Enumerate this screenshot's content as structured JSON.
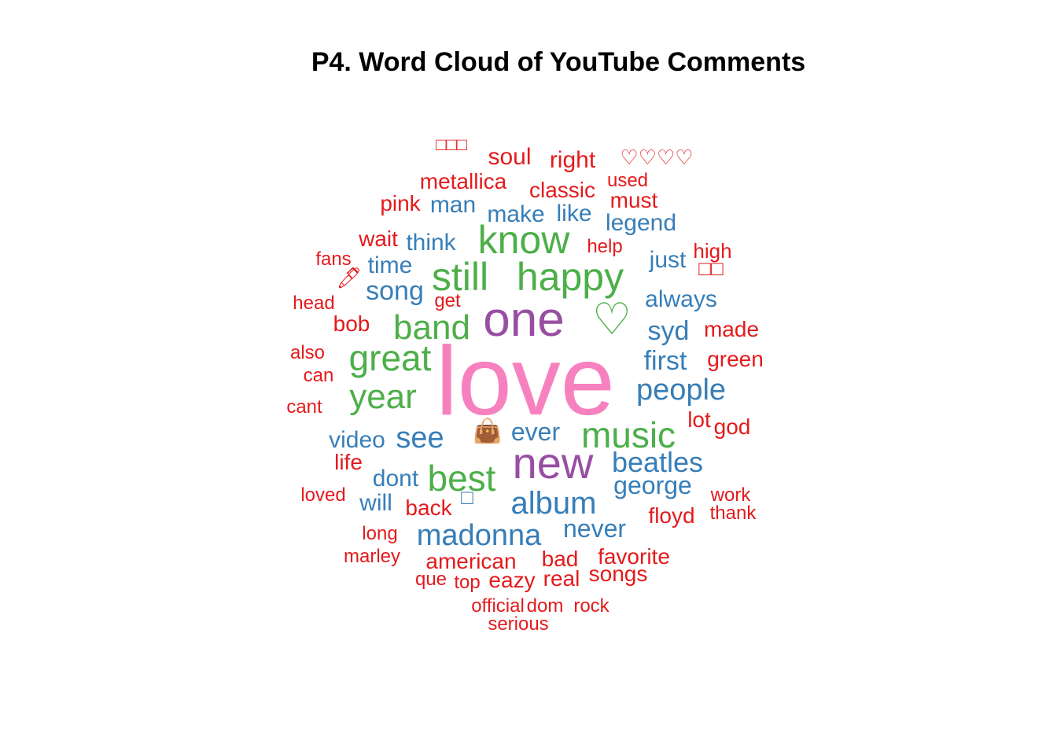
{
  "title": "P4. Word Cloud of YouTube Comments",
  "chart_data": {
    "type": "wordcloud",
    "title": "P4. Word Cloud of YouTube Comments",
    "colors": {
      "tier1": "#F781BF",
      "tier2": "#984EA3",
      "tier3": "#4DAF4A",
      "tier4": "#377EB8",
      "tier5": "#E41A1C"
    },
    "words": [
      {
        "text": "love",
        "tier": 1
      },
      {
        "text": "one",
        "tier": 2
      },
      {
        "text": "new",
        "tier": 2
      },
      {
        "text": "👜",
        "tier": 2
      },
      {
        "text": "know",
        "tier": 3
      },
      {
        "text": "happy",
        "tier": 3
      },
      {
        "text": "still",
        "tier": 3
      },
      {
        "text": "band",
        "tier": 3
      },
      {
        "text": "great",
        "tier": 3
      },
      {
        "text": "year",
        "tier": 3
      },
      {
        "text": "music",
        "tier": 3
      },
      {
        "text": "best",
        "tier": 3
      },
      {
        "text": "♡",
        "tier": 3
      },
      {
        "text": "man",
        "tier": 4
      },
      {
        "text": "make",
        "tier": 4
      },
      {
        "text": "like",
        "tier": 4
      },
      {
        "text": "legend",
        "tier": 4
      },
      {
        "text": "think",
        "tier": 4
      },
      {
        "text": "time",
        "tier": 4
      },
      {
        "text": "song",
        "tier": 4
      },
      {
        "text": "just",
        "tier": 4
      },
      {
        "text": "always",
        "tier": 4
      },
      {
        "text": "syd",
        "tier": 4
      },
      {
        "text": "first",
        "tier": 4
      },
      {
        "text": "people",
        "tier": 4
      },
      {
        "text": "ever",
        "tier": 4
      },
      {
        "text": "video",
        "tier": 4
      },
      {
        "text": "see",
        "tier": 4
      },
      {
        "text": "beatles",
        "tier": 4
      },
      {
        "text": "george",
        "tier": 4
      },
      {
        "text": "dont",
        "tier": 4
      },
      {
        "text": "will",
        "tier": 4
      },
      {
        "text": "album",
        "tier": 4
      },
      {
        "text": "madonna",
        "tier": 4
      },
      {
        "text": "never",
        "tier": 4
      },
      {
        "text": "□",
        "tier": 4
      },
      {
        "text": "□□□",
        "tier": 5
      },
      {
        "text": "soul",
        "tier": 5
      },
      {
        "text": "right",
        "tier": 5
      },
      {
        "text": "♡♡♡♡",
        "tier": 5
      },
      {
        "text": "metallica",
        "tier": 5
      },
      {
        "text": "classic",
        "tier": 5
      },
      {
        "text": "used",
        "tier": 5
      },
      {
        "text": "must",
        "tier": 5
      },
      {
        "text": "pink",
        "tier": 5
      },
      {
        "text": "wait",
        "tier": 5
      },
      {
        "text": "help",
        "tier": 5
      },
      {
        "text": "high",
        "tier": 5
      },
      {
        "text": "fans",
        "tier": 5
      },
      {
        "text": "□□",
        "tier": 5
      },
      {
        "text": "🖊",
        "tier": 5
      },
      {
        "text": "head",
        "tier": 5
      },
      {
        "text": "get",
        "tier": 5
      },
      {
        "text": "bob",
        "tier": 5
      },
      {
        "text": "made",
        "tier": 5
      },
      {
        "text": "also",
        "tier": 5
      },
      {
        "text": "green",
        "tier": 5
      },
      {
        "text": "can",
        "tier": 5
      },
      {
        "text": "cant",
        "tier": 5
      },
      {
        "text": "lot",
        "tier": 5
      },
      {
        "text": "god",
        "tier": 5
      },
      {
        "text": "life",
        "tier": 5
      },
      {
        "text": "loved",
        "tier": 5
      },
      {
        "text": "back",
        "tier": 5
      },
      {
        "text": "work",
        "tier": 5
      },
      {
        "text": "thank",
        "tier": 5
      },
      {
        "text": "floyd",
        "tier": 5
      },
      {
        "text": "long",
        "tier": 5
      },
      {
        "text": "marley",
        "tier": 5
      },
      {
        "text": "american",
        "tier": 5
      },
      {
        "text": "bad",
        "tier": 5
      },
      {
        "text": "favorite",
        "tier": 5
      },
      {
        "text": "que",
        "tier": 5
      },
      {
        "text": "top",
        "tier": 5
      },
      {
        "text": "eazy",
        "tier": 5
      },
      {
        "text": "real",
        "tier": 5
      },
      {
        "text": "songs",
        "tier": 5
      },
      {
        "text": "official",
        "tier": 5
      },
      {
        "text": "dom",
        "tier": 5
      },
      {
        "text": "rock",
        "tier": 5
      },
      {
        "text": "serious",
        "tier": 5
      }
    ]
  }
}
